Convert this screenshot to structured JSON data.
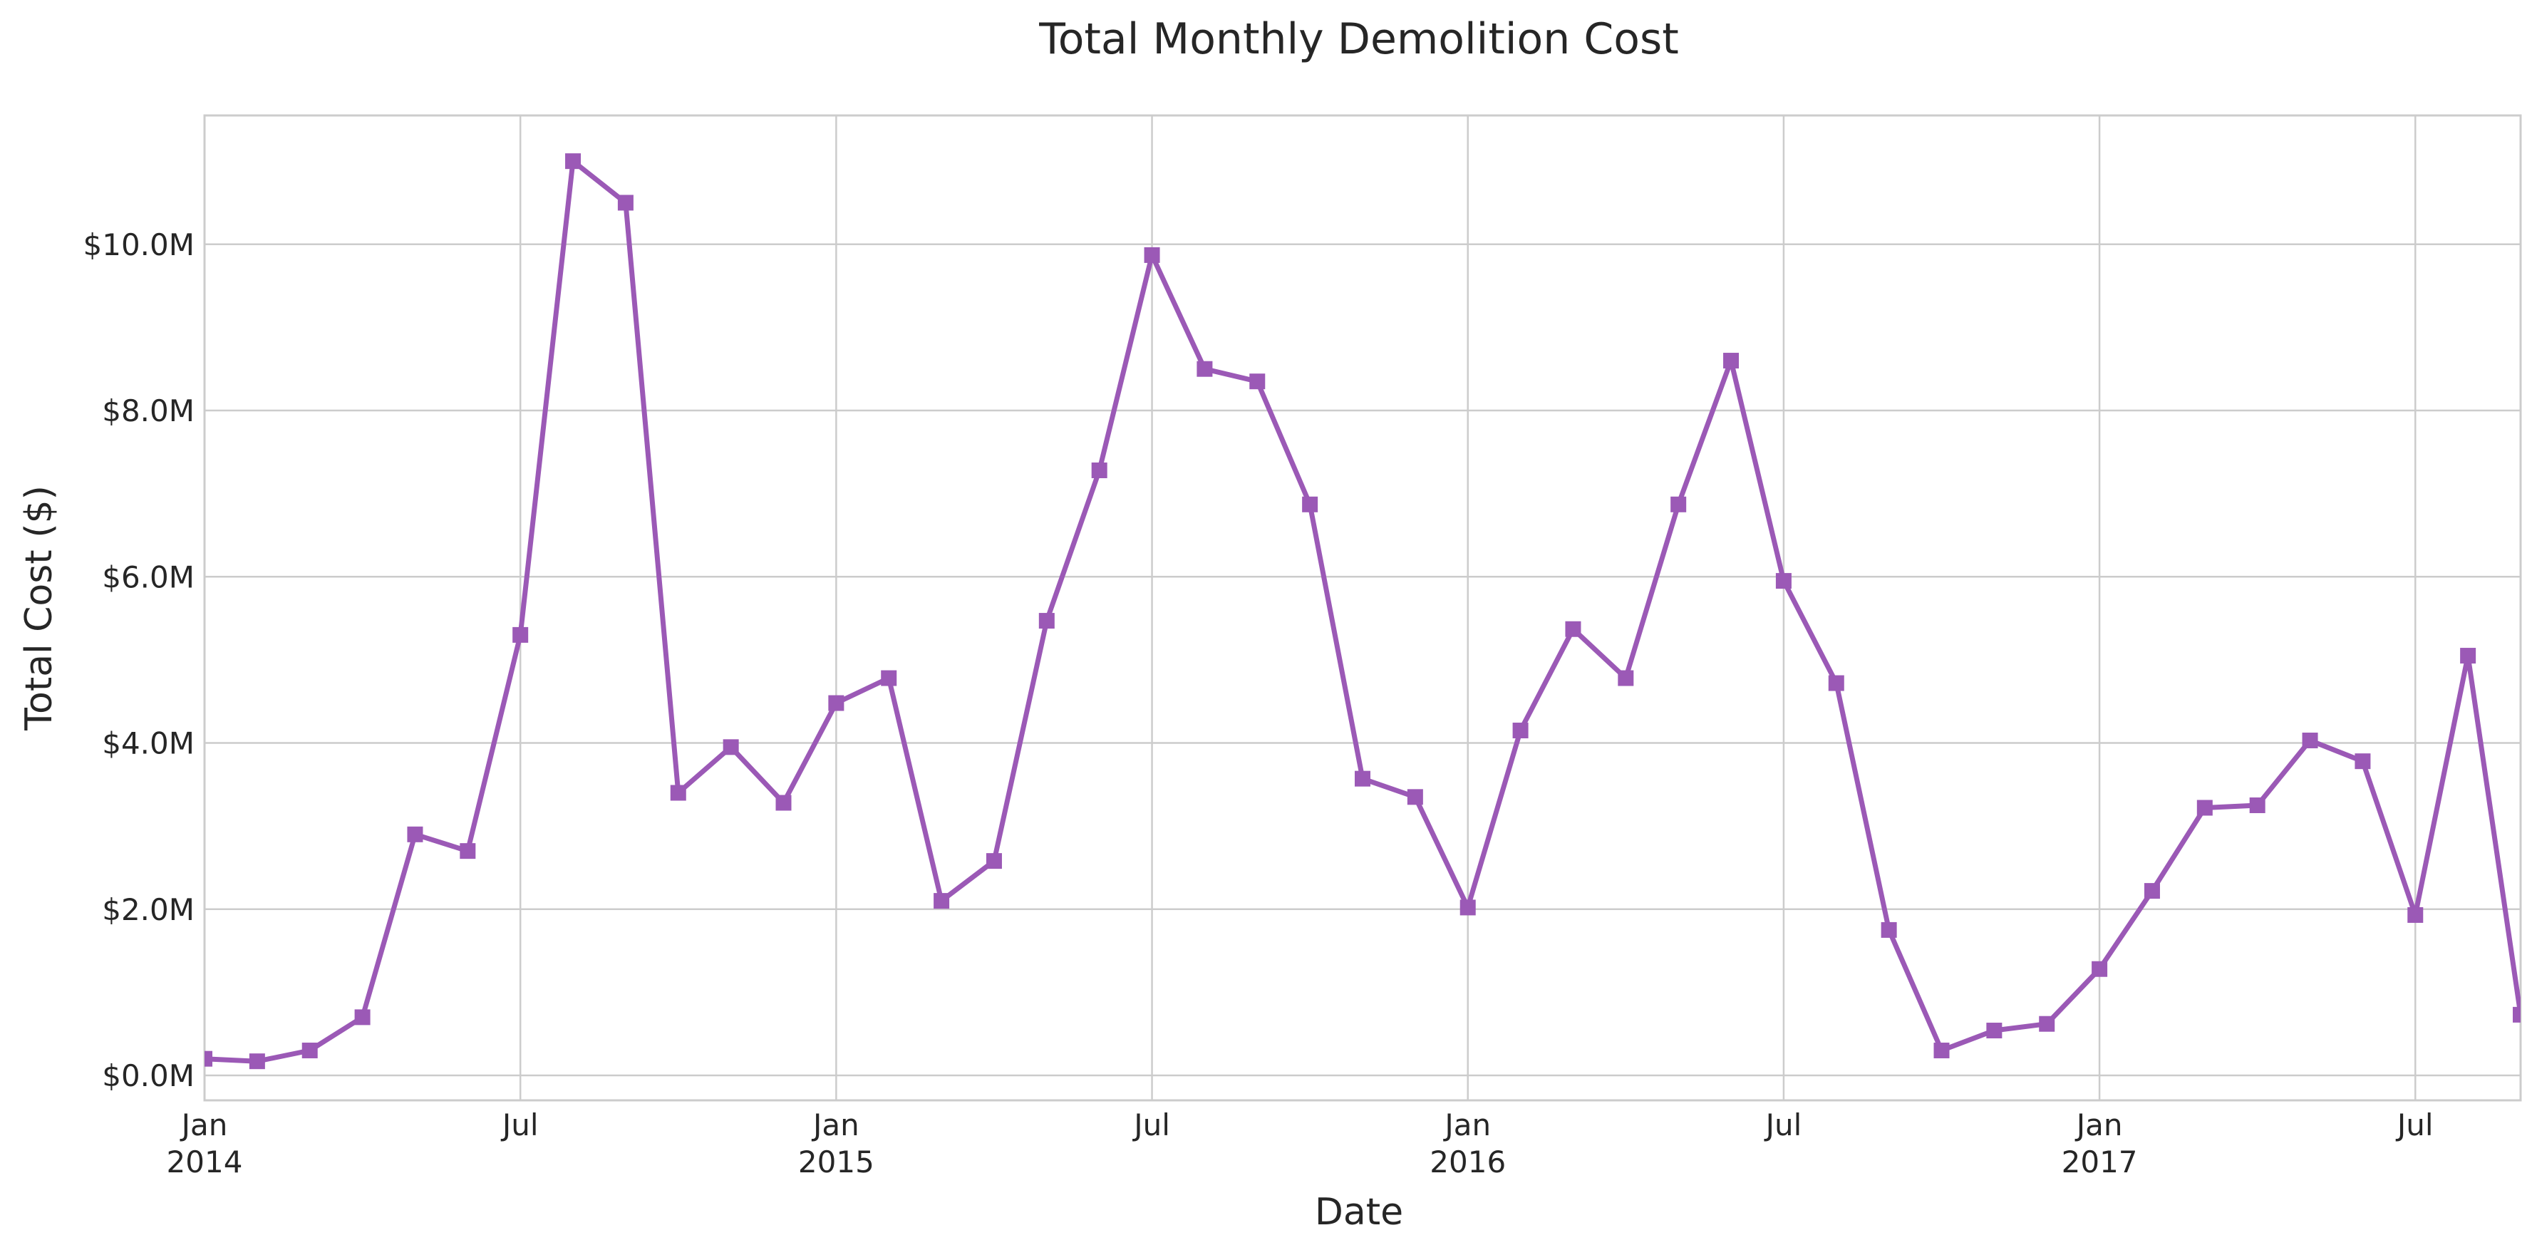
{
  "chart_data": {
    "type": "line",
    "title": "Total Monthly Demolition Cost",
    "xlabel": "Date",
    "ylabel": "Total Cost ($)",
    "x_range": [
      "2014-01",
      "2017-09"
    ],
    "ylim": [
      -0.3,
      11.55
    ],
    "y_unit": "millions of dollars",
    "grid": true,
    "color": "#9b59b6",
    "marker": "square",
    "x_ticks": [
      {
        "date": "2014-01",
        "label": "Jan",
        "sublabel": "2014"
      },
      {
        "date": "2014-07",
        "label": "Jul",
        "sublabel": ""
      },
      {
        "date": "2015-01",
        "label": "Jan",
        "sublabel": "2015"
      },
      {
        "date": "2015-07",
        "label": "Jul",
        "sublabel": ""
      },
      {
        "date": "2016-01",
        "label": "Jan",
        "sublabel": "2016"
      },
      {
        "date": "2016-07",
        "label": "Jul",
        "sublabel": ""
      },
      {
        "date": "2017-01",
        "label": "Jan",
        "sublabel": "2017"
      },
      {
        "date": "2017-07",
        "label": "Jul",
        "sublabel": ""
      }
    ],
    "y_ticks": [
      {
        "value": 0,
        "label": "$0.0M"
      },
      {
        "value": 2,
        "label": "$2.0M"
      },
      {
        "value": 4,
        "label": "$4.0M"
      },
      {
        "value": 6,
        "label": "$6.0M"
      },
      {
        "value": 8,
        "label": "$8.0M"
      },
      {
        "value": 10,
        "label": "$10.0M"
      }
    ],
    "series": [
      {
        "x": [
          "2014-01",
          "2014-02",
          "2014-03",
          "2014-04",
          "2014-05",
          "2014-06",
          "2014-07",
          "2014-08",
          "2014-09",
          "2014-10",
          "2014-11",
          "2014-12",
          "2015-01",
          "2015-02",
          "2015-03",
          "2015-04",
          "2015-05",
          "2015-06",
          "2015-07",
          "2015-08",
          "2015-09",
          "2015-10",
          "2015-11",
          "2015-12",
          "2016-01",
          "2016-02",
          "2016-03",
          "2016-04",
          "2016-05",
          "2016-06",
          "2016-07",
          "2016-08",
          "2016-09",
          "2016-10",
          "2016-11",
          "2016-12",
          "2017-01",
          "2017-02",
          "2017-03",
          "2017-04",
          "2017-05",
          "2017-06",
          "2017-07",
          "2017-08",
          "2017-09"
        ],
        "y": [
          0.2,
          0.17,
          0.3,
          0.7,
          2.9,
          2.7,
          5.3,
          11.0,
          10.5,
          3.4,
          3.95,
          3.28,
          4.48,
          4.78,
          2.1,
          2.58,
          5.47,
          7.28,
          9.87,
          8.5,
          8.35,
          6.87,
          3.57,
          3.35,
          2.02,
          4.15,
          5.37,
          4.78,
          6.87,
          8.6,
          5.95,
          4.72,
          1.75,
          0.3,
          0.54,
          0.62,
          1.28,
          2.22,
          3.22,
          3.25,
          4.03,
          3.78,
          1.93,
          5.05,
          0.73
        ]
      }
    ]
  }
}
